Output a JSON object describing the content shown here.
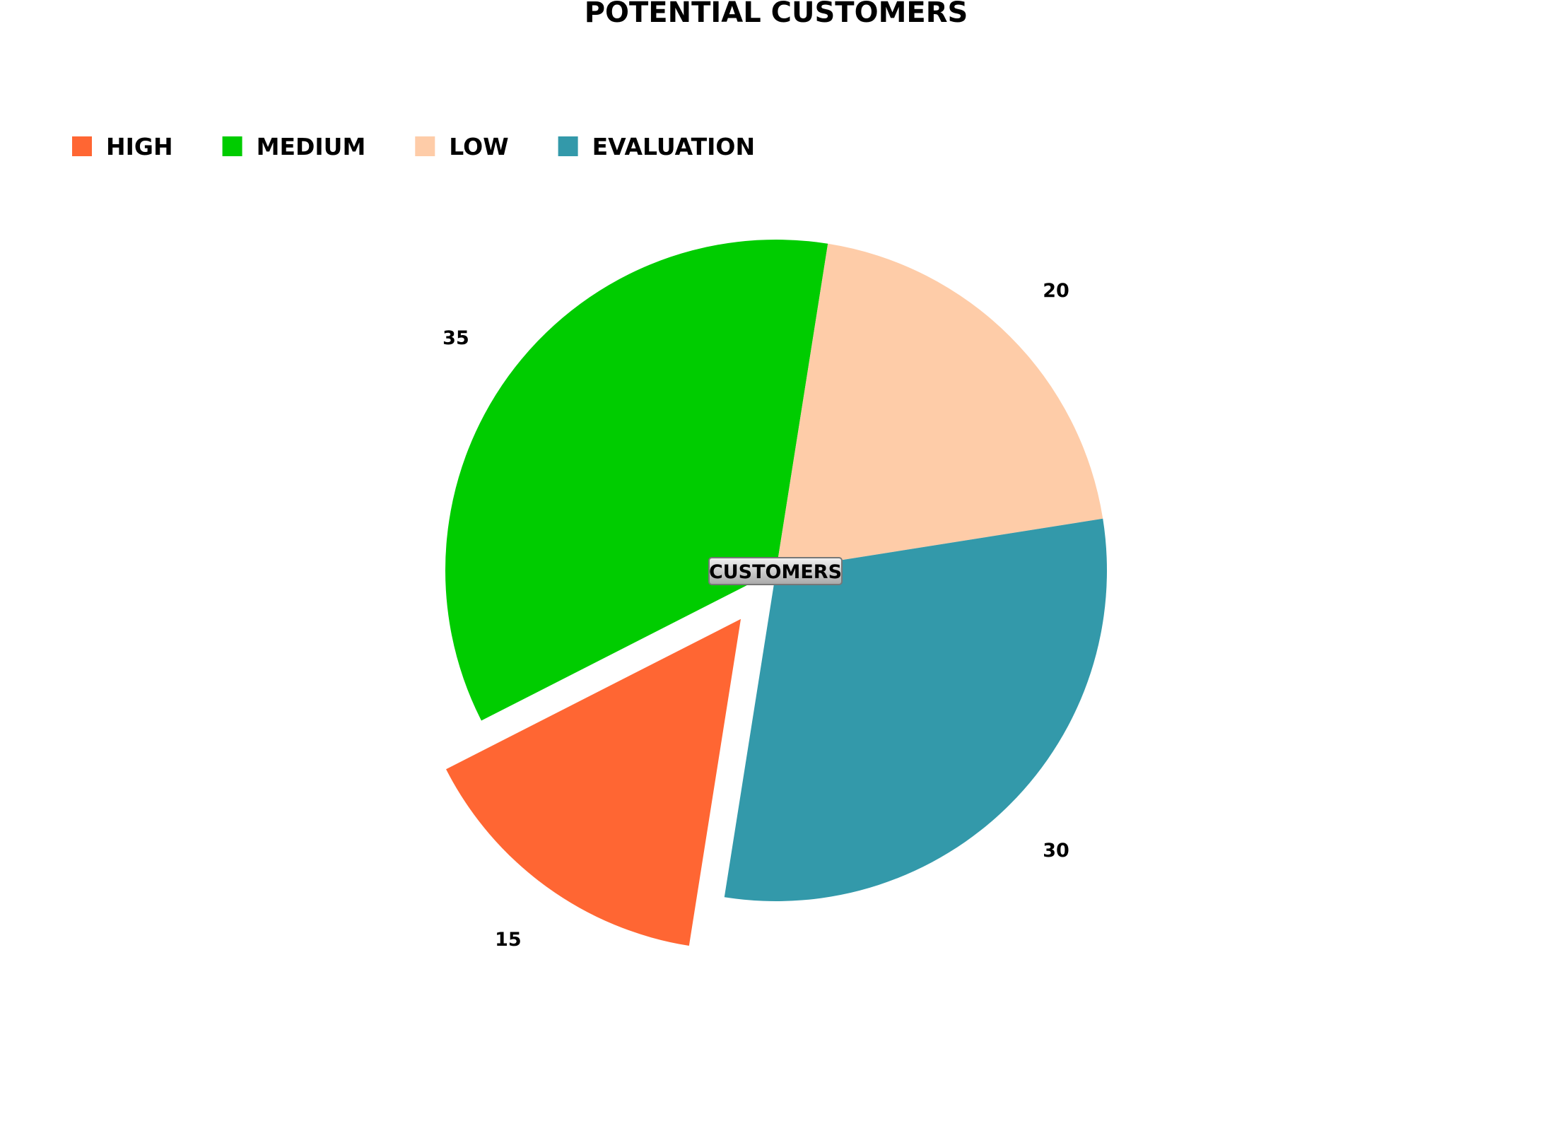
{
  "chart_data": {
    "type": "pie",
    "title": "Potential Customers",
    "center_label": "Customers",
    "exploded_slice": "High",
    "legend_position": "top-left",
    "slices": [
      {
        "name": "High",
        "value": 15,
        "color": "#ff6633"
      },
      {
        "name": "Medium",
        "value": 35,
        "color": "#00cc00"
      },
      {
        "name": "Low",
        "value": 20,
        "color": "#fecca8"
      },
      {
        "name": "Evaluation",
        "value": 30,
        "color": "#3399aa"
      }
    ]
  }
}
